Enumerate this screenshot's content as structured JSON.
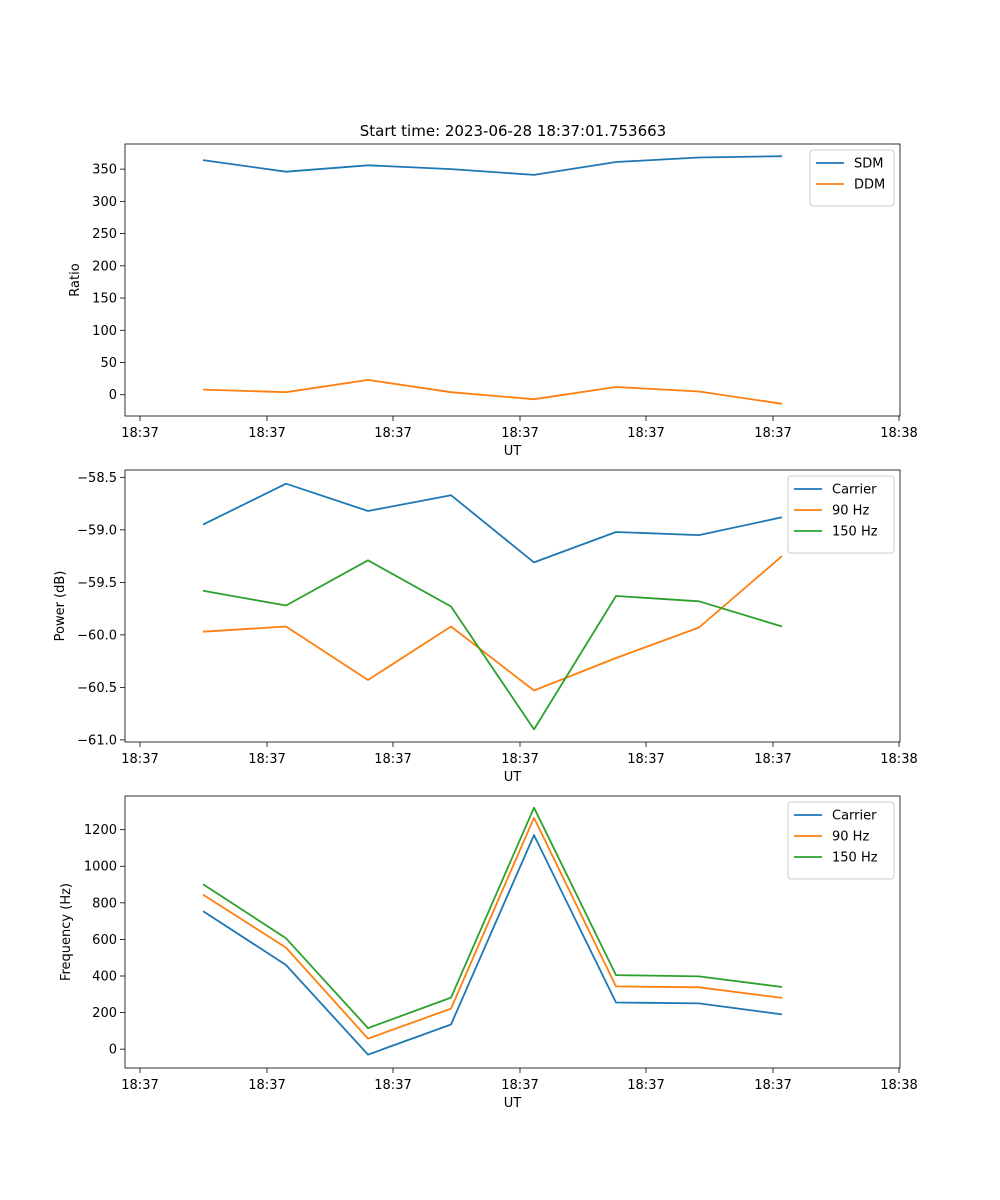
{
  "figure_title": "Start time: 2023-06-28 18:37:01.753663",
  "chart_data": [
    {
      "type": "line",
      "xlabel": "UT",
      "ylabel": "Ratio",
      "x_tick_labels": [
        "18:37",
        "18:37",
        "18:37",
        "18:37",
        "18:37",
        "18:37",
        "18:37",
        "18:38"
      ],
      "y_ticks": [
        0,
        50,
        100,
        150,
        200,
        250,
        300,
        350
      ],
      "ylim": [
        -33,
        389
      ],
      "legend_position": "top-right",
      "series": [
        {
          "name": "SDM",
          "color": "#1f77b4",
          "values": [
            364,
            346,
            356,
            350,
            341,
            361,
            368,
            370
          ]
        },
        {
          "name": "DDM",
          "color": "#ff7f0e",
          "values": [
            8,
            4,
            23,
            4,
            -7,
            12,
            5,
            -14
          ]
        }
      ]
    },
    {
      "type": "line",
      "xlabel": "UT",
      "ylabel": "Power (dB)",
      "x_tick_labels": [
        "18:37",
        "18:37",
        "18:37",
        "18:37",
        "18:37",
        "18:37",
        "18:37",
        "18:38"
      ],
      "y_ticks": [
        -61.0,
        -60.5,
        -60.0,
        -59.5,
        -59.0,
        -58.5
      ],
      "y_tick_labels": [
        "−61.0",
        "−60.5",
        "−60.0",
        "−59.5",
        "−59.0",
        "−58.5"
      ],
      "ylim": [
        -61.02,
        -58.43
      ],
      "legend_position": "top-right",
      "series": [
        {
          "name": "Carrier",
          "color": "#1f77b4",
          "values": [
            -58.95,
            -58.56,
            -58.82,
            -58.67,
            -59.31,
            -59.02,
            -59.05,
            -58.88
          ]
        },
        {
          "name": "90 Hz",
          "color": "#ff7f0e",
          "values": [
            -59.97,
            -59.92,
            -60.43,
            -59.92,
            -60.53,
            -60.22,
            -59.93,
            -59.25
          ]
        },
        {
          "name": "150 Hz",
          "color": "#2ca02c",
          "values": [
            -59.58,
            -59.72,
            -59.29,
            -59.73,
            -60.9,
            -59.63,
            -59.68,
            -59.92
          ]
        }
      ]
    },
    {
      "type": "line",
      "xlabel": "UT",
      "ylabel": "Frequency (Hz)",
      "x_tick_labels": [
        "18:37",
        "18:37",
        "18:37",
        "18:37",
        "18:37",
        "18:37",
        "18:37",
        "18:38"
      ],
      "y_ticks": [
        0,
        200,
        400,
        600,
        800,
        1000,
        1200
      ],
      "ylim": [
        -103,
        1384
      ],
      "legend_position": "top-right",
      "series": [
        {
          "name": "Carrier",
          "color": "#1f77b4",
          "values": [
            755,
            460,
            -30,
            135,
            1170,
            255,
            250,
            190
          ]
        },
        {
          "name": "90 Hz",
          "color": "#ff7f0e",
          "values": [
            845,
            555,
            58,
            222,
            1265,
            343,
            338,
            280
          ]
        },
        {
          "name": "150 Hz",
          "color": "#2ca02c",
          "values": [
            902,
            606,
            115,
            282,
            1320,
            405,
            398,
            340
          ]
        }
      ]
    }
  ]
}
